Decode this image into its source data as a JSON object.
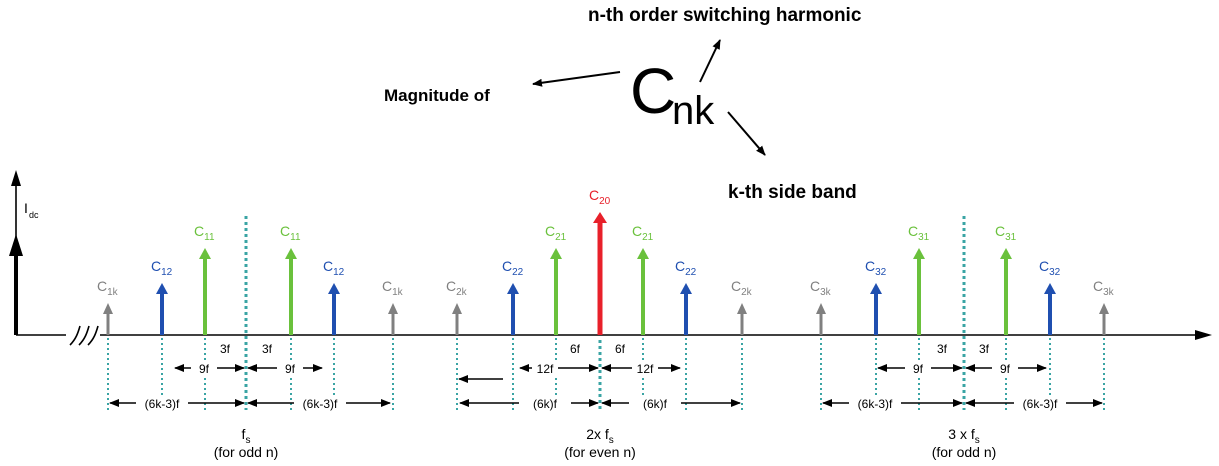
{
  "header": {
    "symbol_main": "C",
    "symbol_sub": "nk",
    "label_n": "n-th order switching harmonic",
    "label_mag": "Magnitude of",
    "label_k": "k-th side band"
  },
  "axis": {
    "ylabel_main": "I",
    "ylabel_sub": "dc"
  },
  "colors": {
    "gray": "#808080",
    "blue": "#1f4fb0",
    "green": "#6ac13c",
    "red": "#e8202a",
    "dc": "#000000",
    "divider": "#3aa4a4",
    "dim": "#000000"
  },
  "lines": {
    "c1k_l": {
      "base": "C",
      "sub": "1k"
    },
    "c12_l": {
      "base": "C",
      "sub": "12"
    },
    "c11_l": {
      "base": "C",
      "sub": "11"
    },
    "c11_r": {
      "base": "C",
      "sub": "11"
    },
    "c12_r": {
      "base": "C",
      "sub": "12"
    },
    "c1k_r": {
      "base": "C",
      "sub": "1k"
    },
    "c2k_l": {
      "base": "C",
      "sub": "2k"
    },
    "c22_l": {
      "base": "C",
      "sub": "22"
    },
    "c21_l": {
      "base": "C",
      "sub": "21"
    },
    "c20": {
      "base": "C",
      "sub": "20"
    },
    "c21_r": {
      "base": "C",
      "sub": "21"
    },
    "c22_r": {
      "base": "C",
      "sub": "22"
    },
    "c2k_r": {
      "base": "C",
      "sub": "2k"
    },
    "c3k_l": {
      "base": "C",
      "sub": "3k"
    },
    "c32_l": {
      "base": "C",
      "sub": "32"
    },
    "c31_l": {
      "base": "C",
      "sub": "31"
    },
    "c31_r": {
      "base": "C",
      "sub": "31"
    },
    "c32_r": {
      "base": "C",
      "sub": "32"
    },
    "c3k_r": {
      "base": "C",
      "sub": "3k"
    }
  },
  "dims": {
    "g1_3f_a": "3f",
    "g1_3f_b": "3f",
    "g1_9f_a": "9f",
    "g1_9f_b": "9f",
    "g1_6k_a": "(6k-3)f",
    "g1_6k_b": "(6k-3)f",
    "g2_6f_a": "6f",
    "g2_6f_b": "6f",
    "g2_12f_a": "12f",
    "g2_12f_b": "12f",
    "g2_6k_a": "(6k)f",
    "g2_6k_b": "(6k)f",
    "g3_3f_a": "3f",
    "g3_3f_b": "3f",
    "g3_9f_a": "9f",
    "g3_9f_b": "9f",
    "g3_6k_a": "(6k-3)f",
    "g3_6k_b": "(6k-3)f"
  },
  "groups": {
    "g1": {
      "prefix": "",
      "f": "f",
      "s": "s",
      "note": "(for odd n)"
    },
    "g2": {
      "prefix": "2x ",
      "f": "f",
      "s": "s",
      "note": "(for even n)"
    },
    "g3": {
      "prefix": "3 x ",
      "f": "f",
      "s": "s",
      "note": "(for odd n)"
    }
  }
}
